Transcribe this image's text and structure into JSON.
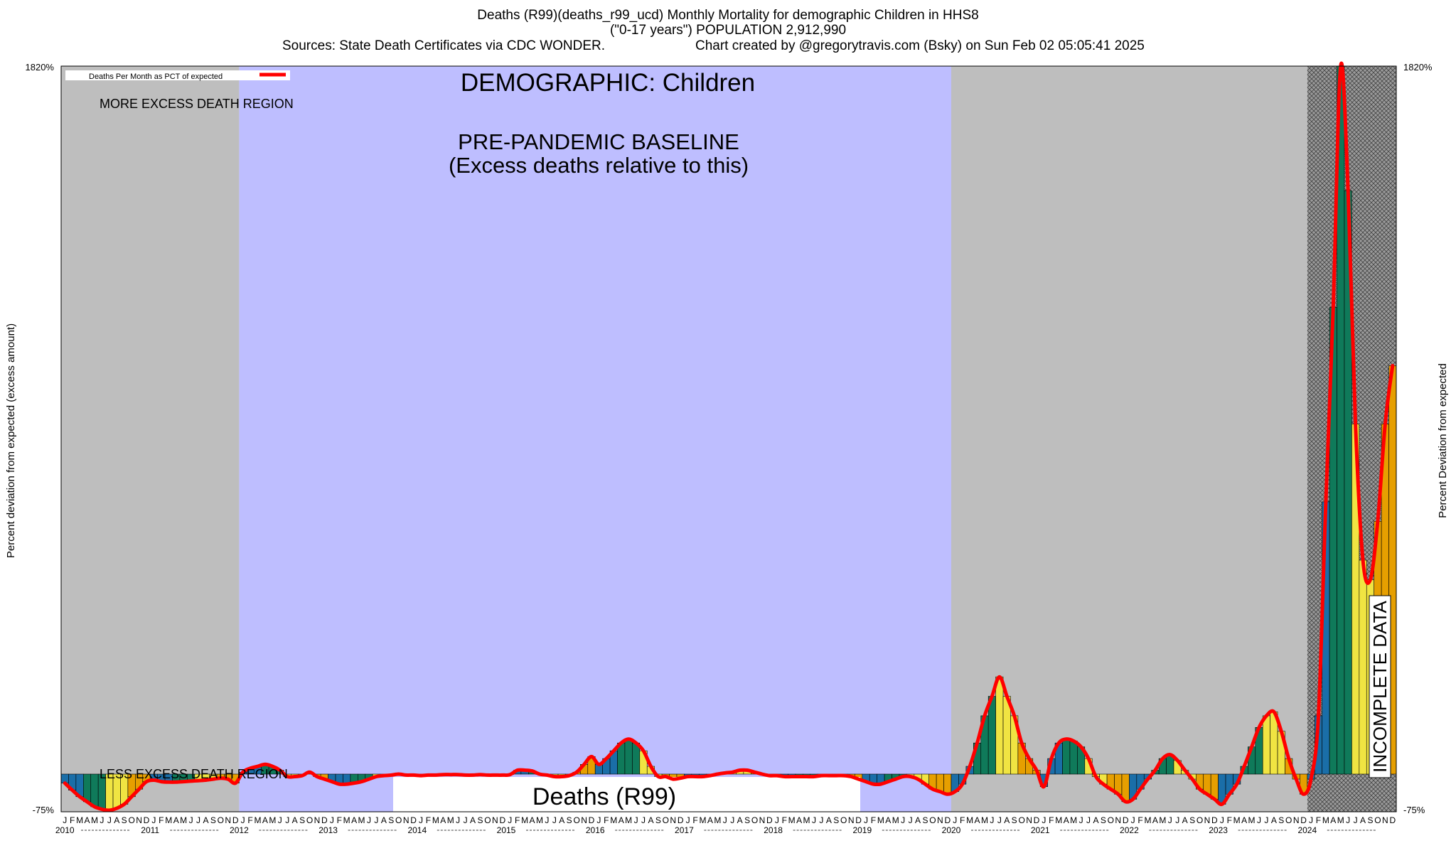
{
  "header": {
    "line1": "Deaths (R99)(deaths_r99_ucd) Monthly Mortality for demographic Children in HHS8",
    "line2": "(\"0-17 years\") POPULATION 2,912,990",
    "sources": "Sources: State Death Certificates via CDC WONDER.",
    "credit": "Chart created by @gregorytravis.com (Bsky) on Sun Feb 02 05:05:41 2025"
  },
  "chart_data": {
    "type": "bar",
    "title": "DEMOGRAPHIC: Children",
    "ylabel_left": "Percent deviation from expected (excess amount)",
    "ylabel_right": "Percent Deviation from expected",
    "ylim": [
      -75,
      1820
    ],
    "ytick_top": "1820%",
    "ytick_bottom": "-75%",
    "legend": {
      "label": "Deaths Per Month as PCT of expected",
      "color": "#ff0000",
      "position": "top-left"
    },
    "annotations": {
      "more_excess": "MORE EXCESS DEATH REGION",
      "less_excess": "LESS EXCESS DEATH REGION",
      "baseline_line1": "PRE-PANDEMIC BASELINE",
      "baseline_line2": "(Excess deaths relative to this)",
      "bottom_label": "Deaths (R99)",
      "incomplete": "INCOMPLETE DATA"
    },
    "start_year": 2010,
    "years": [
      "2010",
      "2011",
      "2012",
      "2013",
      "2014",
      "2015",
      "2016",
      "2017",
      "2018",
      "2019",
      "2020",
      "2021",
      "2022",
      "2023",
      "2024"
    ],
    "month_letters": [
      "J",
      "F",
      "M",
      "A",
      "M",
      "J",
      "J",
      "A",
      "S",
      "O",
      "N",
      "D"
    ],
    "regions": [
      {
        "name": "pre-period",
        "from": "2010-01",
        "to": "2011-12",
        "color": "#bebebe"
      },
      {
        "name": "pre-pandemic-baseline",
        "from": "2012-01",
        "to": "2019-12",
        "color": "#bebeff"
      },
      {
        "name": "pandemic-period",
        "from": "2020-01",
        "to": "2023-12",
        "color": "#bebebe"
      },
      {
        "name": "incomplete-data",
        "from": "2024-01",
        "to": "2024-12",
        "color": "#999999"
      }
    ],
    "bar_colors": [
      "#1a6ea8",
      "#0f7a5a",
      "#f0e442",
      "#e69f00"
    ],
    "line_color": "#ff0000",
    "values": [
      -18,
      -32,
      -45,
      -55,
      -65,
      -70,
      -72,
      -68,
      -60,
      -45,
      -30,
      -15,
      -12,
      -15,
      -16,
      -16,
      -15,
      -14,
      -13,
      -12,
      -10,
      -8,
      -10,
      -18,
      5,
      15,
      20,
      25,
      20,
      10,
      -5,
      -5,
      -3,
      5,
      -5,
      -10,
      -15,
      -20,
      -20,
      -18,
      -15,
      -10,
      -5,
      -3,
      -2,
      0,
      -2,
      -2,
      -3,
      -2,
      -2,
      -1,
      -1,
      -1,
      -2,
      -2,
      -1,
      -2,
      -2,
      -2,
      -1,
      10,
      10,
      8,
      0,
      -2,
      -5,
      -5,
      -3,
      5,
      25,
      45,
      25,
      40,
      60,
      80,
      90,
      80,
      60,
      20,
      -5,
      -5,
      -10,
      -8,
      -5,
      -5,
      -5,
      -3,
      0,
      3,
      5,
      10,
      10,
      5,
      0,
      -3,
      -3,
      -5,
      -5,
      -5,
      -5,
      -5,
      -3,
      -3,
      -3,
      -3,
      -5,
      -10,
      -15,
      -20,
      -20,
      -15,
      -10,
      -5,
      -5,
      -10,
      -20,
      -30,
      -35,
      -40,
      -35,
      -20,
      20,
      80,
      150,
      200,
      250,
      200,
      150,
      80,
      40,
      10,
      -25,
      40,
      80,
      90,
      85,
      70,
      40,
      -5,
      -20,
      -30,
      -40,
      -55,
      -50,
      -30,
      -10,
      10,
      40,
      50,
      35,
      10,
      -10,
      -30,
      -40,
      -50,
      -60,
      -40,
      -20,
      20,
      70,
      120,
      150,
      160,
      110,
      40,
      -10,
      -40,
      -10,
      150,
      700,
      1200,
      1820,
      1500,
      900,
      550,
      500,
      650,
      900,
      1050
    ]
  }
}
